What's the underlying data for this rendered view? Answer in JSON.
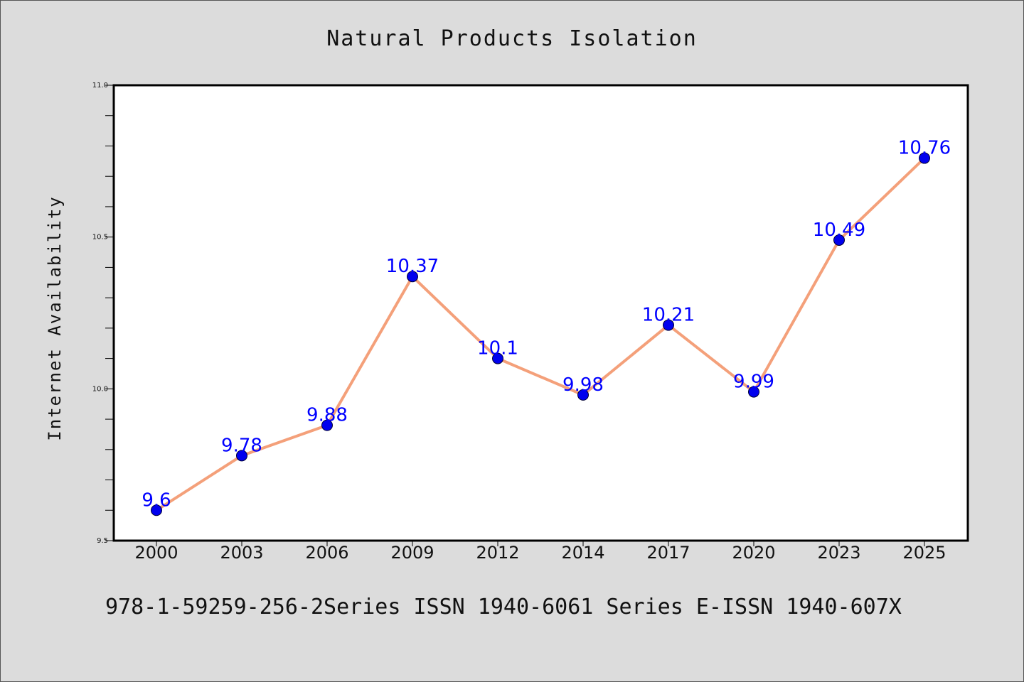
{
  "chart_data": {
    "type": "line",
    "title": "Natural Products Isolation",
    "xlabel": "",
    "ylabel": "Internet Availability",
    "categories": [
      "2000",
      "2003",
      "2006",
      "2009",
      "2012",
      "2014",
      "2017",
      "2020",
      "2023",
      "2025"
    ],
    "series": [
      {
        "values": [
          9.6,
          9.78,
          9.88,
          10.37,
          10.1,
          9.98,
          10.21,
          9.99,
          10.49,
          10.76
        ],
        "labels": [
          "9.6",
          "9.78",
          "9.88",
          "10.37",
          "10.1",
          "9.98",
          "10.21",
          "9.99",
          "10.49",
          "10.76"
        ],
        "line_color": "#f4a07a",
        "marker_color": "#0000ee",
        "label_color": "#0000ff"
      }
    ],
    "ylim": [
      9.5,
      11.0
    ],
    "yticks": [
      "9.5",
      "10.0",
      "10.5",
      "11.0"
    ],
    "grid": false,
    "legend": "none"
  },
  "footer": {
    "text": "978-1-59259-256-2Series ISSN 1940-6061 Series E-ISSN 1940-607X"
  },
  "colors": {
    "background": "#dcdcdc",
    "plot_area": "#ffffff"
  }
}
